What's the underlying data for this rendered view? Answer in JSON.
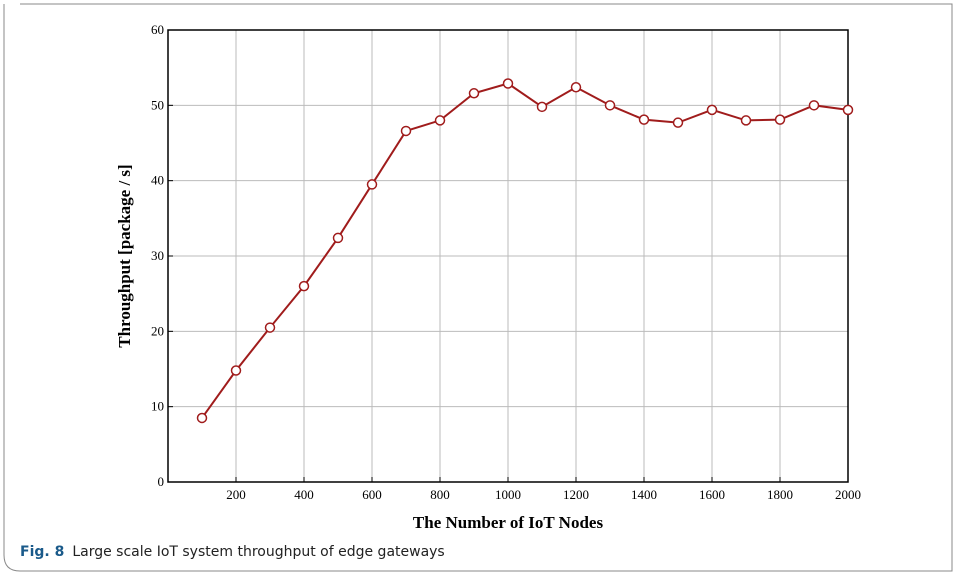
{
  "chart_data": {
    "type": "line",
    "x_label": "The Number of IoT Nodes",
    "y_label": "Throughput [package / s]",
    "x": [
      100,
      200,
      300,
      400,
      500,
      600,
      700,
      800,
      900,
      1000,
      1100,
      1200,
      1300,
      1400,
      1500,
      1600,
      1700,
      1800,
      1900,
      2000
    ],
    "series": [
      {
        "name": "Throughput",
        "color": "#a01c1c",
        "values": [
          8.5,
          14.8,
          20.5,
          26,
          32.4,
          39.5,
          46.6,
          48,
          51.6,
          52.9,
          49.8,
          52.4,
          50,
          48.1,
          47.7,
          49.4,
          48,
          48.1,
          50,
          49.4
        ]
      }
    ],
    "xlim": [
      0,
      2000
    ],
    "xticks": [
      200,
      400,
      600,
      800,
      1000,
      1200,
      1400,
      1600,
      1800,
      2000
    ],
    "ylim": [
      0,
      60
    ],
    "yticks": [
      0,
      10,
      20,
      30,
      40,
      50,
      60
    ],
    "grid": true
  },
  "caption": {
    "label": "Fig. 8",
    "text": "Large scale IoT system throughput of edge gateways"
  }
}
